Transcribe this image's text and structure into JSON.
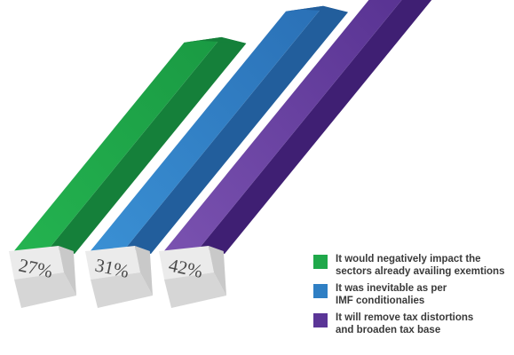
{
  "colors": {
    "green": "#1fa84a",
    "blue": "#2f7fc4",
    "purple": "#5b3597",
    "label_box": "#ebebeb"
  },
  "chart_data": {
    "type": "bar",
    "categories": [
      "It would negatively impact the sectors already availing exemtions",
      "It was inevitable as per IMF conditionalies",
      "It will remove tax distortions and broaden tax base"
    ],
    "values": [
      27,
      31,
      42
    ],
    "value_labels": [
      "27%",
      "31%",
      "42%"
    ],
    "series_colors": [
      "green",
      "blue",
      "purple"
    ],
    "legend_position": "bottom-right",
    "grid": false
  },
  "legend": [
    {
      "text": "It would negatively impact the\nsectors already availing exemtions",
      "color": "green"
    },
    {
      "text": "It was inevitable as per\nIMF conditionalies",
      "color": "blue"
    },
    {
      "text": "It will remove tax distortions\nand broaden tax base",
      "color": "purple"
    }
  ]
}
